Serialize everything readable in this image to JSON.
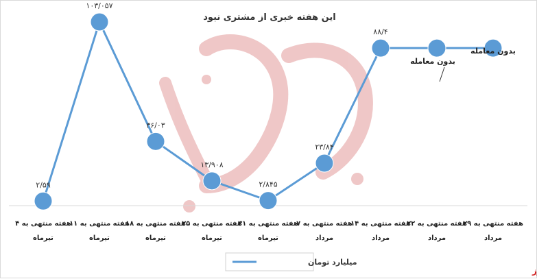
{
  "chart_data": {
    "type": "line",
    "title": "این هفته خبری از مشتری نبود",
    "categories": [
      [
        "هفته منتهی به ۴",
        "تیرماه"
      ],
      [
        "هفته منتهی به ۱۱",
        "تیرماه"
      ],
      [
        "هفته منتهی به ۱۸",
        "تیرماه"
      ],
      [
        "هفته منتهی به ۲۵",
        "تیرماه"
      ],
      [
        "هفته منتهی به ۳۱",
        "تیرماه"
      ],
      [
        "هفته منتهی به ۷",
        "مرداد"
      ],
      [
        "هفته منتهی به ۱۴",
        "مرداد"
      ],
      [
        "هفته منتهی به ۲۲",
        "مرداد"
      ],
      [
        "هفته منتهی به ۲۹",
        "مرداد"
      ]
    ],
    "series": [
      {
        "name": "میلیارد تومان",
        "color": "#5b9bd5",
        "values": [
          2.59,
          103.057,
          36.03,
          13.908,
          2.845,
          23.84,
          88.4,
          88.4,
          88.4
        ],
        "labels": [
          "۲/۵۹",
          "۱۰۳/۰۵۷",
          "۳۶/۰۳",
          "۱۳/۹۰۸",
          "۲/۸۴۵",
          "۲۳/۸۴",
          "۸۸/۴",
          "",
          ""
        ]
      }
    ],
    "ylim": [
      0,
      115
    ],
    "grid": false,
    "legend_position": "bottom",
    "annotations": [
      "بدون معامله",
      "بدون معامله"
    ]
  },
  "watermark": {
    "text": "بورس نیوز",
    "color": "#e8a0a0"
  },
  "brand": "بورس نیوز"
}
